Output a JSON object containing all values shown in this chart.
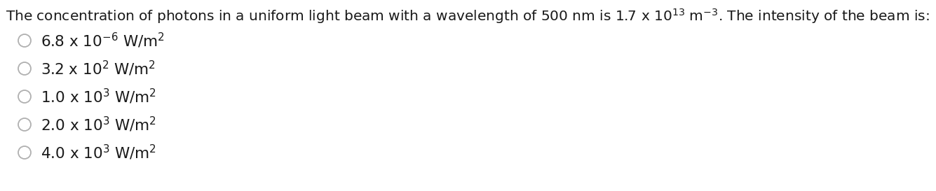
{
  "question_text": "The concentration of photons in a uniform light beam with a wavelength of 500 nm is 1.7 x 10$^{13}$ m$^{-3}$. The intensity of the beam is:",
  "options": [
    {
      "coeff": "6.8",
      "power": "-6"
    },
    {
      "coeff": "3.2",
      "power": "2"
    },
    {
      "coeff": "1.0",
      "power": "3"
    },
    {
      "coeff": "2.0",
      "power": "3"
    },
    {
      "coeff": "4.0",
      "power": "3"
    }
  ],
  "background_color": "#ffffff",
  "text_color": "#1a1a1a",
  "radio_edge_color": "#b0b0b0",
  "question_fontsize": 14.5,
  "option_fontsize": 15.5,
  "fig_width": 13.35,
  "fig_height": 2.73,
  "dpi": 100
}
